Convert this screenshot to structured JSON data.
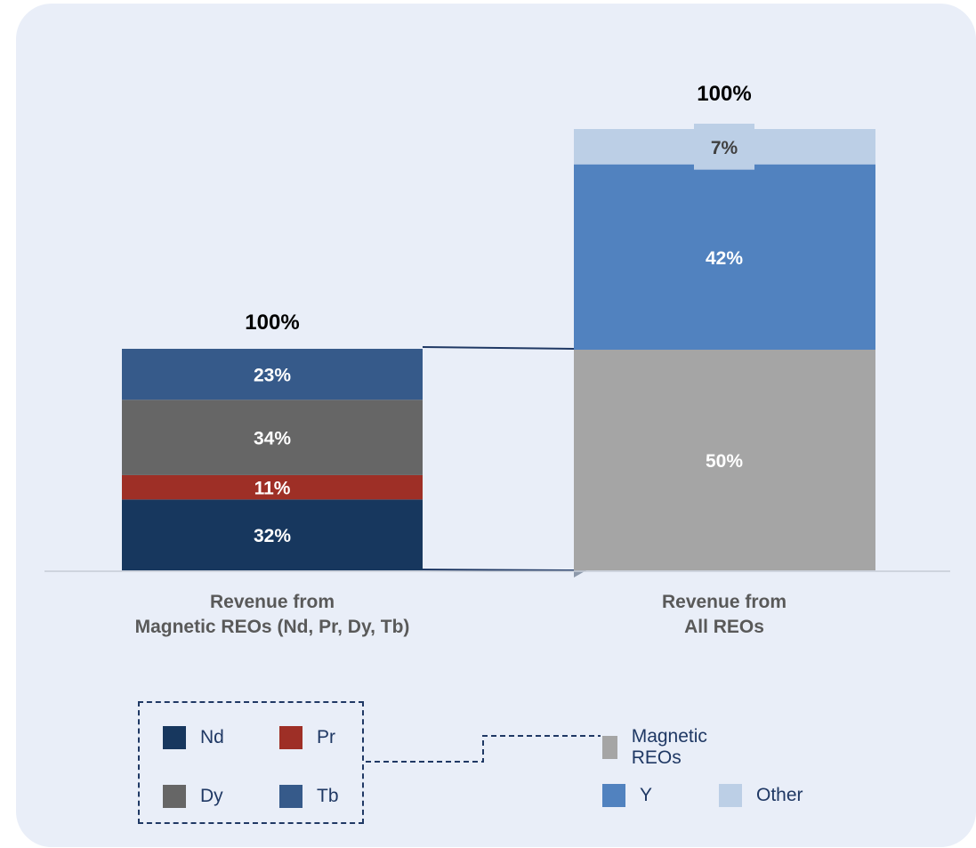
{
  "chart_data": {
    "type": "stacked-bar",
    "categories": [
      "Revenue from\nMagnetic REOs (Nd, Pr, Dy, Tb)",
      "Revenue from\nAll REOs"
    ],
    "totals": [
      "100%",
      "100%"
    ],
    "series_bar1": [
      {
        "name": "Nd",
        "value": 32,
        "label": "32%",
        "color": "#17375e"
      },
      {
        "name": "Pr",
        "value": 11,
        "label": "11%",
        "color": "#9e2f26"
      },
      {
        "name": "Dy",
        "value": 34,
        "label": "34%",
        "color": "#666666"
      },
      {
        "name": "Tb",
        "value": 23,
        "label": "23%",
        "color": "#365a8a"
      }
    ],
    "series_bar2": [
      {
        "name": "Magnetic REOs",
        "value": 50,
        "label": "50%",
        "color": "#a5a5a5"
      },
      {
        "name": "Y",
        "value": 42,
        "label": "42%",
        "color": "#5182bf"
      },
      {
        "name": "Other",
        "value": 7,
        "label": "7%",
        "color": "#bccfe6"
      }
    ],
    "ylim": [
      0,
      100
    ],
    "grid": false
  },
  "legend": {
    "left_items": [
      {
        "label": "Nd",
        "color": "#17375e"
      },
      {
        "label": "Pr",
        "color": "#9e2f26"
      },
      {
        "label": "Dy",
        "color": "#666666"
      },
      {
        "label": "Tb",
        "color": "#365a8a"
      }
    ],
    "right_items": [
      {
        "label": "Magnetic REOs",
        "color": "#a5a5a5"
      },
      {
        "label": "Y",
        "color": "#5182bf"
      },
      {
        "label": "Other",
        "color": "#bccfe6"
      }
    ]
  }
}
